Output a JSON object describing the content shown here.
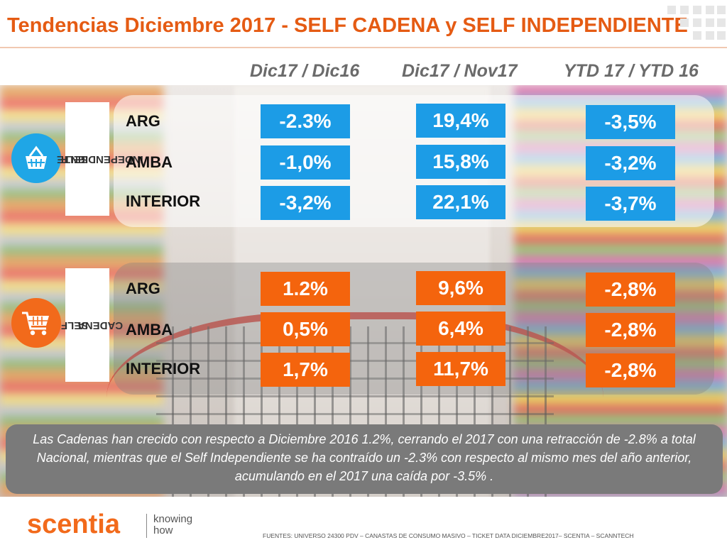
{
  "title": "Tendencias Diciembre 2017 - SELF CADENA y SELF INDEPENDIENTE",
  "columns": [
    "Dic17 / Dic16",
    "Dic17 / Nov17",
    "YTD 17 / YTD 16"
  ],
  "groups": [
    {
      "label_line1": "SELF",
      "label_line2": "INDEPENDIENTE",
      "icon": "basket-icon",
      "color": "#1c9ce6",
      "rows": [
        {
          "label": "ARG",
          "values": [
            "-2.3%",
            "19,4%",
            "-3,5%"
          ]
        },
        {
          "label": "AMBA",
          "values": [
            "-1,0%",
            "15,8%",
            "-3,2%"
          ]
        },
        {
          "label": "INTERIOR",
          "values": [
            "-3,2%",
            "22,1%",
            "-3,7%"
          ]
        }
      ]
    },
    {
      "label_line1": "SELF",
      "label_line2": "CADENA",
      "icon": "shopping-cart-icon",
      "color": "#f4640d",
      "rows": [
        {
          "label": "ARG",
          "values": [
            "1.2%",
            "9,6%",
            "-2,8%"
          ]
        },
        {
          "label": "AMBA",
          "values": [
            "0,5%",
            "6,4%",
            "-2,8%"
          ]
        },
        {
          "label": "INTERIOR",
          "values": [
            "1,7%",
            "11,7%",
            "-2,8%"
          ]
        }
      ]
    }
  ],
  "note": "Las Cadenas han crecido con respecto a Diciembre 2016 1.2%, cerrando el 2017 con una retracción de -2.8% a total Nacional, mientras que el Self Independiente se ha contraído un -2.3% con respecto al mismo mes del año anterior, acumulando en el 2017 una caída por -3.5% .",
  "footer": {
    "logo": "scentia",
    "tagline_line1": "knowing",
    "tagline_line2": "how",
    "sources": "FUENTES: UNIVERSO 24300 PDV – CANASTAS DE CONSUMO MASIVO – TICKET DATA DICIEMBRE2017– SCENTIA – SCANNTECH"
  }
}
